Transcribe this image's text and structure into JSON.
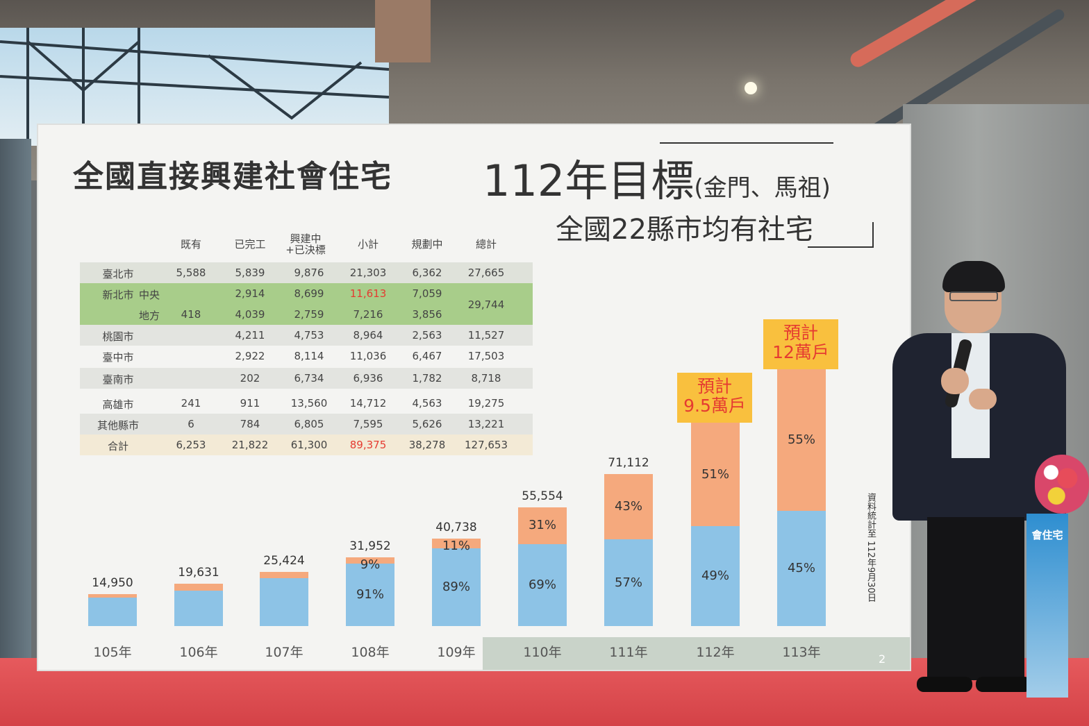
{
  "slide": {
    "title": "全國直接興建社會住宅",
    "goal_main": "112年目標",
    "goal_paren": "(金門、馬祖)",
    "goal_sub": "全國22縣市均有社宅",
    "source_note": "資料統計至 112年9月30日",
    "page_number": "2"
  },
  "table": {
    "headers": [
      "既有",
      "已完工",
      "興建中+已決標",
      "小計",
      "規劃中",
      "總計"
    ],
    "rows": [
      {
        "name": "臺北市",
        "cells": [
          "5,588",
          "5,839",
          "9,876",
          "21,303",
          "6,362",
          "27,665"
        ]
      },
      {
        "name": "新北市",
        "sub": "中央",
        "cells": [
          "",
          "2,914",
          "8,699",
          "11,613",
          "7,059",
          ""
        ]
      },
      {
        "name": "",
        "sub": "地方",
        "cells": [
          "418",
          "4,039",
          "2,759",
          "7,216",
          "3,856",
          "29,744"
        ]
      },
      {
        "name": "桃園市",
        "cells": [
          "",
          "4,211",
          "4,753",
          "8,964",
          "2,563",
          "11,527"
        ]
      },
      {
        "name": "臺中市",
        "cells": [
          "",
          "2,922",
          "8,114",
          "11,036",
          "6,467",
          "17,503"
        ]
      },
      {
        "name": "臺南市",
        "cells": [
          "",
          "202",
          "6,734",
          "6,936",
          "1,782",
          "8,718"
        ]
      },
      {
        "name": "高雄市",
        "cells": [
          "241",
          "911",
          "13,560",
          "14,712",
          "4,563",
          "19,275"
        ]
      },
      {
        "name": "其他縣市",
        "cells": [
          "6",
          "784",
          "6,805",
          "7,595",
          "5,626",
          "13,221"
        ]
      },
      {
        "name": "合計",
        "cells": [
          "6,253",
          "21,822",
          "61,300",
          "89,375",
          "38,278",
          "127,653"
        ]
      }
    ]
  },
  "chart_data": {
    "type": "bar",
    "categories": [
      "105年",
      "106年",
      "107年",
      "108年",
      "109年",
      "110年",
      "111年",
      "112年",
      "113年"
    ],
    "totals": [
      14950,
      19631,
      25424,
      31952,
      40738,
      55554,
      71112,
      95000,
      120000
    ],
    "total_labels": [
      "14,950",
      "19,631",
      "25,424",
      "31,952",
      "40,738",
      "55,554",
      "71,112",
      "",
      ""
    ],
    "series": [
      {
        "values": [
          0.88,
          0.85,
          0.88,
          0.91,
          0.89,
          0.69,
          0.57,
          0.49,
          0.45
        ],
        "labels": [
          "",
          "",
          "",
          "91%",
          "89%",
          "69%",
          "57%",
          "49%",
          "45%"
        ],
        "color": "#8dc3e6"
      },
      {
        "values": [
          0.12,
          0.15,
          0.12,
          0.09,
          0.11,
          0.31,
          0.43,
          0.51,
          0.55
        ],
        "labels": [
          "",
          "",
          "",
          "9%",
          "11%",
          "31%",
          "43%",
          "51%",
          "55%"
        ],
        "color": "#f5a97d"
      }
    ],
    "annotations": [
      {
        "category": "112年",
        "line1": "預計",
        "line2": "9.5萬戶"
      },
      {
        "category": "113年",
        "line1": "預計",
        "line2": "12萬戶"
      }
    ]
  },
  "banner": {
    "text": "會住宅"
  }
}
